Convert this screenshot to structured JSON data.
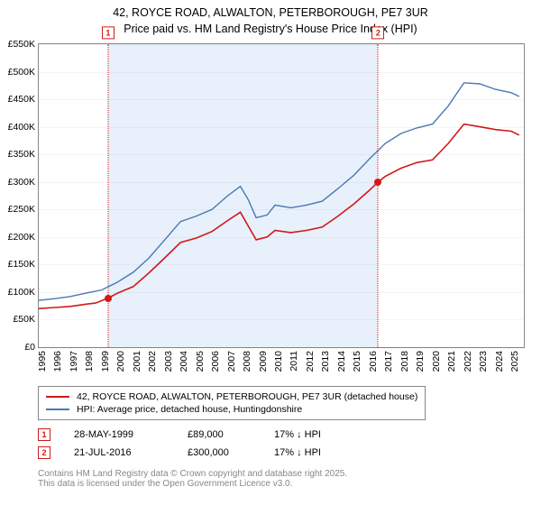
{
  "title_line1": "42, ROYCE ROAD, ALWALTON, PETERBOROUGH, PE7 3UR",
  "title_line2": "Price paid vs. HM Land Registry's House Price Index (HPI)",
  "chart": {
    "type": "line",
    "background_color": "#ffffff",
    "band_color": "#e8f0fb",
    "x_min_year": 1995,
    "x_max_year": 2025.8,
    "y_min": 0,
    "y_max": 550,
    "y_ticks": [
      0,
      50,
      100,
      150,
      200,
      250,
      300,
      350,
      400,
      450,
      500,
      550
    ],
    "y_tick_prefix": "£",
    "y_tick_suffix": "K",
    "x_ticks": [
      1995,
      1996,
      1997,
      1998,
      1999,
      2000,
      2001,
      2002,
      2003,
      2004,
      2005,
      2006,
      2007,
      2008,
      2009,
      2010,
      2011,
      2012,
      2013,
      2014,
      2015,
      2016,
      2017,
      2018,
      2019,
      2020,
      2021,
      2022,
      2023,
      2024,
      2025
    ],
    "series": [
      {
        "name": "price_paid",
        "color": "#d11919",
        "width": 1.6,
        "points": [
          [
            1995,
            70
          ],
          [
            1996,
            72
          ],
          [
            1997,
            74
          ],
          [
            1998,
            78
          ],
          [
            1998.6,
            80
          ],
          [
            1999.4,
            89
          ],
          [
            2000,
            98
          ],
          [
            2001,
            110
          ],
          [
            2002,
            135
          ],
          [
            2003,
            162
          ],
          [
            2004,
            190
          ],
          [
            2005,
            198
          ],
          [
            2006,
            210
          ],
          [
            2007,
            230
          ],
          [
            2007.8,
            245
          ],
          [
            2008.3,
            220
          ],
          [
            2008.8,
            195
          ],
          [
            2009.5,
            200
          ],
          [
            2010,
            212
          ],
          [
            2011,
            208
          ],
          [
            2012,
            212
          ],
          [
            2013,
            218
          ],
          [
            2014,
            238
          ],
          [
            2015,
            260
          ],
          [
            2016,
            285
          ],
          [
            2016.55,
            300
          ],
          [
            2017,
            310
          ],
          [
            2018,
            325
          ],
          [
            2019,
            335
          ],
          [
            2020,
            340
          ],
          [
            2021,
            370
          ],
          [
            2022,
            405
          ],
          [
            2023,
            400
          ],
          [
            2024,
            395
          ],
          [
            2025,
            392
          ],
          [
            2025.5,
            385
          ]
        ]
      },
      {
        "name": "hpi",
        "color": "#4a78b5",
        "width": 1.4,
        "points": [
          [
            1995,
            85
          ],
          [
            1996,
            88
          ],
          [
            1997,
            92
          ],
          [
            1998,
            98
          ],
          [
            1999,
            104
          ],
          [
            2000,
            118
          ],
          [
            2001,
            136
          ],
          [
            2002,
            162
          ],
          [
            2003,
            195
          ],
          [
            2004,
            228
          ],
          [
            2005,
            238
          ],
          [
            2006,
            250
          ],
          [
            2007,
            275
          ],
          [
            2007.8,
            292
          ],
          [
            2008.3,
            268
          ],
          [
            2008.8,
            235
          ],
          [
            2009.5,
            240
          ],
          [
            2010,
            258
          ],
          [
            2011,
            253
          ],
          [
            2012,
            258
          ],
          [
            2013,
            265
          ],
          [
            2014,
            288
          ],
          [
            2015,
            312
          ],
          [
            2016,
            342
          ],
          [
            2017,
            370
          ],
          [
            2018,
            388
          ],
          [
            2019,
            398
          ],
          [
            2020,
            405
          ],
          [
            2021,
            438
          ],
          [
            2022,
            480
          ],
          [
            2023,
            478
          ],
          [
            2024,
            468
          ],
          [
            2025,
            462
          ],
          [
            2025.5,
            455
          ]
        ]
      }
    ],
    "band_start_year": 1999.4,
    "band_end_year": 2016.55,
    "sale_markers": [
      {
        "n": "1",
        "year": 1999.4,
        "value": 89,
        "color": "#d11919"
      },
      {
        "n": "2",
        "year": 2016.55,
        "value": 300,
        "color": "#d11919"
      }
    ]
  },
  "legend": [
    {
      "color": "#d11919",
      "label": "42, ROYCE ROAD, ALWALTON, PETERBOROUGH, PE7 3UR (detached house)"
    },
    {
      "color": "#4a78b5",
      "label": "HPI: Average price, detached house, Huntingdonshire"
    }
  ],
  "sales_table": [
    {
      "n": "1",
      "color": "#d11919",
      "date": "28-MAY-1999",
      "price": "£89,000",
      "diff": "17% ↓ HPI"
    },
    {
      "n": "2",
      "color": "#d11919",
      "date": "21-JUL-2016",
      "price": "£300,000",
      "diff": "17% ↓ HPI"
    }
  ],
  "footnote_l1": "Contains HM Land Registry data © Crown copyright and database right 2025.",
  "footnote_l2": "This data is licensed under the Open Government Licence v3.0."
}
